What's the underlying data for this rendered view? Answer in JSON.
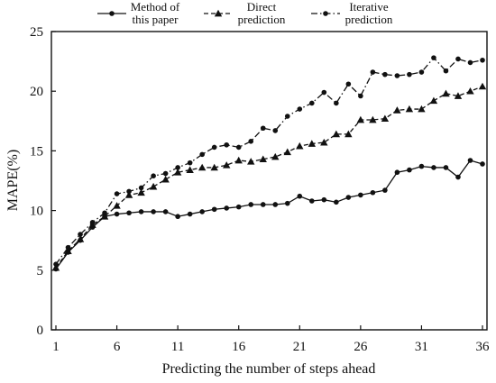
{
  "chart_data": {
    "type": "line",
    "title": "",
    "xlabel": "Predicting the number of steps ahead",
    "ylabel": "MAPE(%)",
    "xlim": [
      1,
      36
    ],
    "ylim": [
      0,
      25
    ],
    "xticks": [
      1,
      6,
      11,
      16,
      21,
      26,
      31,
      36
    ],
    "yticks": [
      0,
      5,
      10,
      15,
      20,
      25
    ],
    "grid": false,
    "legend_position": "top",
    "x": [
      1,
      2,
      3,
      4,
      5,
      6,
      7,
      8,
      9,
      10,
      11,
      12,
      13,
      14,
      15,
      16,
      17,
      18,
      19,
      20,
      21,
      22,
      23,
      24,
      25,
      26,
      27,
      28,
      29,
      30,
      31,
      32,
      33,
      34,
      35,
      36
    ],
    "series": [
      {
        "name": "Method of this paper",
        "marker": "circle",
        "line_style": "solid",
        "color": "#111111",
        "values": [
          5.1,
          6.5,
          7.5,
          8.6,
          9.5,
          9.7,
          9.8,
          9.9,
          9.9,
          9.9,
          9.5,
          9.7,
          9.9,
          10.1,
          10.2,
          10.3,
          10.5,
          10.5,
          10.5,
          10.6,
          11.2,
          10.8,
          10.9,
          10.7,
          11.1,
          11.3,
          11.5,
          11.7,
          13.2,
          13.4,
          13.7,
          13.6,
          13.6,
          12.8,
          14.2,
          13.9
        ]
      },
      {
        "name": "Direct prediction",
        "marker": "triangle",
        "line_style": "dashed",
        "color": "#111111",
        "values": [
          5.2,
          6.6,
          7.6,
          8.8,
          9.5,
          10.4,
          11.3,
          11.5,
          12.0,
          12.6,
          13.2,
          13.4,
          13.6,
          13.6,
          13.8,
          14.2,
          14.1,
          14.3,
          14.5,
          14.9,
          15.4,
          15.6,
          15.7,
          16.4,
          16.4,
          17.6,
          17.6,
          17.7,
          18.4,
          18.5,
          18.5,
          19.2,
          19.8,
          19.6,
          20.0,
          20.4
        ]
      },
      {
        "name": "Iterative prediction",
        "marker": "circle",
        "line_style": "dash-dot",
        "color": "#111111",
        "values": [
          5.5,
          6.9,
          8.0,
          9.0,
          9.8,
          11.4,
          11.6,
          11.9,
          12.9,
          13.1,
          13.6,
          14.0,
          14.7,
          15.3,
          15.5,
          15.3,
          15.8,
          16.9,
          16.7,
          17.9,
          18.5,
          19.0,
          19.9,
          19.0,
          20.6,
          19.6,
          21.6,
          21.4,
          21.3,
          21.4,
          21.6,
          22.8,
          21.7,
          22.7,
          22.4,
          22.6
        ]
      }
    ]
  }
}
